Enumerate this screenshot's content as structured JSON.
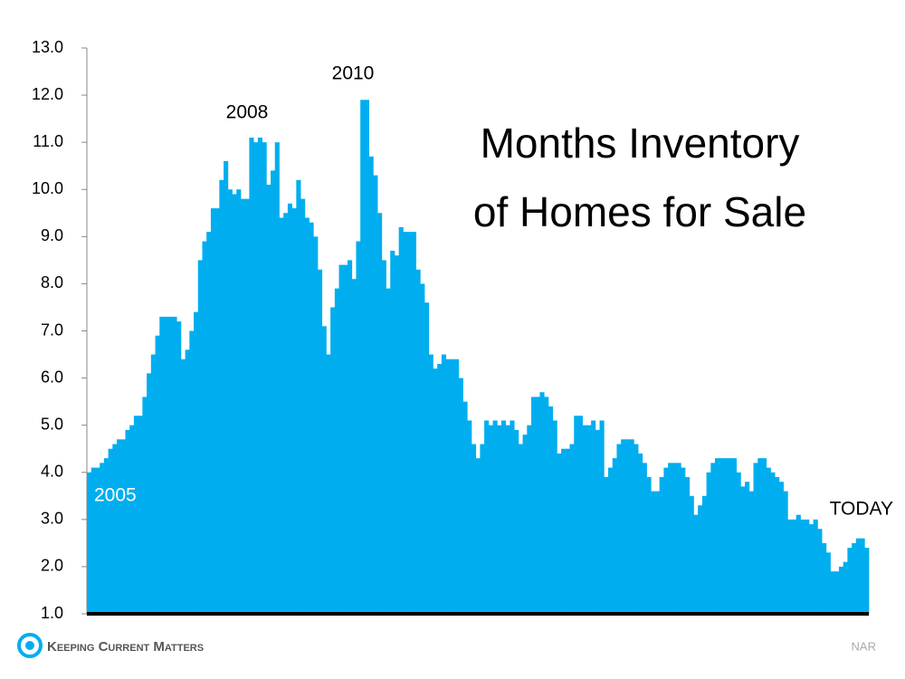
{
  "chart_data": {
    "type": "bar",
    "title_lines": [
      "Months Inventory",
      "of Homes for Sale"
    ],
    "annotations": [
      "2005",
      "2008",
      "2010",
      "TODAY"
    ],
    "source": "NAR",
    "brand": "Keeping Current Matters",
    "color": "#00aeef",
    "ylim": [
      1,
      13
    ],
    "yticks": [
      {
        "value": 1,
        "label": "1.0"
      },
      {
        "value": 2,
        "label": "2.0"
      },
      {
        "value": 3,
        "label": "3.0"
      },
      {
        "value": 4,
        "label": "4.0"
      },
      {
        "value": 5,
        "label": "5.0"
      },
      {
        "value": 6,
        "label": "6.0"
      },
      {
        "value": 7,
        "label": "7.0"
      },
      {
        "value": 8,
        "label": "8.0"
      },
      {
        "value": 9,
        "label": "9.0"
      },
      {
        "value": 10,
        "label": "10.0"
      },
      {
        "value": 11,
        "label": "11.0"
      },
      {
        "value": 12,
        "label": "12.0"
      },
      {
        "value": 13,
        "label": "13.0"
      }
    ],
    "categories": [
      null,
      null,
      null,
      null,
      null,
      null,
      null,
      null,
      null,
      null,
      null,
      null,
      null,
      null,
      null,
      null,
      null,
      null,
      null,
      null,
      null,
      null,
      null,
      null,
      null,
      null,
      null,
      null,
      null,
      null,
      null,
      null,
      null,
      null,
      null,
      null,
      null,
      null,
      null,
      null,
      null,
      null,
      null,
      null,
      null,
      null,
      null,
      null,
      null,
      null,
      null,
      null,
      null,
      null,
      null,
      null,
      null,
      null,
      null,
      null,
      null,
      null,
      null,
      null,
      null,
      null,
      null,
      null,
      null,
      null,
      null,
      null,
      null,
      null,
      null,
      null,
      null,
      null,
      null,
      null,
      null,
      null,
      null,
      null,
      null,
      null,
      null,
      null,
      null,
      null,
      null,
      null,
      null,
      null,
      null,
      null,
      null,
      null,
      null,
      null,
      null,
      null,
      null,
      null,
      null,
      null,
      null,
      null,
      null,
      null,
      null,
      null,
      null,
      null,
      null,
      null,
      null,
      null,
      null,
      null,
      null,
      null,
      null,
      null,
      null,
      null,
      null,
      null,
      null,
      null,
      null,
      null,
      null,
      null,
      null,
      null,
      null,
      null,
      null,
      null,
      null,
      null,
      null,
      null,
      null,
      null,
      null,
      null,
      null,
      null,
      null,
      null,
      null,
      null,
      null,
      null,
      null,
      null,
      null,
      null,
      null,
      null,
      null,
      null,
      null,
      null,
      null,
      null,
      null,
      null,
      null,
      null,
      null,
      null,
      null,
      null,
      null,
      null,
      null,
      null,
      null,
      null,
      null
    ],
    "values": [
      4.0,
      4.1,
      4.1,
      4.2,
      4.3,
      4.5,
      4.6,
      4.7,
      4.7,
      4.9,
      5.0,
      5.2,
      5.2,
      5.6,
      6.1,
      6.5,
      6.9,
      7.3,
      7.3,
      7.3,
      7.3,
      7.2,
      6.4,
      6.6,
      7.0,
      7.4,
      8.5,
      8.9,
      9.1,
      9.6,
      9.6,
      10.2,
      10.6,
      10.0,
      9.9,
      10.0,
      9.8,
      9.8,
      11.1,
      11.0,
      11.1,
      11.0,
      10.1,
      10.4,
      11.0,
      9.4,
      9.5,
      9.7,
      9.6,
      10.2,
      9.8,
      9.4,
      9.3,
      9.0,
      8.3,
      7.1,
      6.5,
      7.5,
      7.9,
      8.4,
      8.4,
      8.5,
      8.1,
      8.9,
      11.9,
      11.9,
      10.7,
      10.3,
      9.5,
      8.5,
      7.9,
      8.7,
      8.6,
      9.2,
      9.1,
      9.1,
      9.1,
      8.3,
      8.0,
      7.6,
      6.5,
      6.2,
      6.3,
      6.5,
      6.4,
      6.4,
      6.4,
      6.0,
      5.5,
      5.1,
      4.6,
      4.3,
      4.6,
      5.1,
      5.0,
      5.1,
      5.0,
      5.1,
      5.0,
      5.1,
      4.9,
      4.6,
      4.8,
      5.0,
      5.6,
      5.6,
      5.7,
      5.6,
      5.4,
      5.1,
      4.4,
      4.5,
      4.5,
      4.6,
      5.2,
      5.2,
      5.0,
      5.0,
      5.1,
      4.9,
      5.1,
      3.9,
      4.1,
      4.3,
      4.6,
      4.7,
      4.7,
      4.7,
      4.6,
      4.4,
      4.2,
      3.9,
      3.6,
      3.6,
      3.9,
      4.1,
      4.2,
      4.2,
      4.2,
      4.1,
      3.9,
      3.5,
      3.1,
      3.3,
      3.5,
      4.0,
      4.2,
      4.3,
      4.3,
      4.3,
      4.3,
      4.3,
      4.0,
      3.7,
      3.8,
      3.6,
      4.2,
      4.3,
      4.3,
      4.1,
      4.0,
      3.9,
      3.8,
      3.6,
      3.0,
      3.0,
      3.1,
      3.0,
      3.0,
      2.9,
      3.0,
      2.8,
      2.5,
      2.3,
      1.9,
      1.9,
      2.0,
      2.1,
      2.4,
      2.5,
      2.6,
      2.6,
      2.4
    ]
  }
}
